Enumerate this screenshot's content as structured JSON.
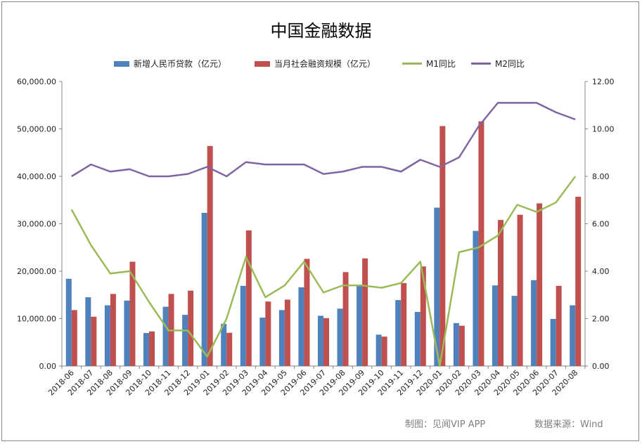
{
  "chart_data": {
    "type": "bar",
    "title": "中国金融数据",
    "categories": [
      "2018-06",
      "2018-07",
      "2018-08",
      "2018-09",
      "2018-10",
      "2018-11",
      "2018-12",
      "2019-01",
      "2019-02",
      "2019-03",
      "2019-04",
      "2019-05",
      "2019-06",
      "2019-07",
      "2019-08",
      "2019-09",
      "2019-10",
      "2019-11",
      "2019-12",
      "2020-01",
      "2020-02",
      "2020-03",
      "2020-04",
      "2020-05",
      "2020-06",
      "2020-07",
      "2020-08"
    ],
    "bar_series": [
      {
        "name": "新增人民币贷款（亿元）",
        "color": "#4f81bd",
        "values": [
          18400,
          14500,
          12800,
          13800,
          6970,
          12500,
          10800,
          32300,
          8900,
          16900,
          10200,
          11800,
          16600,
          10600,
          12100,
          16900,
          6613,
          13900,
          11400,
          33400,
          9057,
          28500,
          17000,
          14800,
          18100,
          9927,
          12800
        ]
      },
      {
        "name": "当月社会融资规模（亿元）",
        "color": "#c0504d",
        "values": [
          11800,
          10400,
          15200,
          22000,
          7300,
          15200,
          15900,
          46400,
          7000,
          28600,
          13600,
          14000,
          22600,
          10100,
          19800,
          22700,
          6200,
          17500,
          21000,
          50600,
          8500,
          51600,
          30800,
          31900,
          34300,
          16900,
          35700
        ]
      }
    ],
    "line_series": [
      {
        "name": "M1同比",
        "color": "#9bbb59",
        "values": [
          6.6,
          5.1,
          3.9,
          4.0,
          2.7,
          1.5,
          1.5,
          0.4,
          2.0,
          4.6,
          2.9,
          3.4,
          4.4,
          3.1,
          3.4,
          3.4,
          3.3,
          3.5,
          4.4,
          0.0,
          4.8,
          5.0,
          5.5,
          6.8,
          6.5,
          6.9,
          8.0
        ]
      },
      {
        "name": "M2同比",
        "color": "#8064a2",
        "values": [
          8.0,
          8.5,
          8.2,
          8.3,
          8.0,
          8.0,
          8.1,
          8.4,
          8.0,
          8.6,
          8.5,
          8.5,
          8.5,
          8.1,
          8.2,
          8.4,
          8.4,
          8.2,
          8.7,
          8.4,
          8.8,
          10.1,
          11.1,
          11.1,
          11.1,
          10.7,
          10.4
        ]
      }
    ],
    "y_left": {
      "min": 0,
      "max": 60000,
      "step": 10000,
      "ticks": [
        "0.00",
        "10,000.00",
        "20,000.00",
        "30,000.00",
        "40,000.00",
        "50,000.00",
        "60,000.00"
      ]
    },
    "y_right": {
      "min": 0,
      "max": 12,
      "step": 2,
      "ticks": [
        "0.00",
        "2.00",
        "4.00",
        "6.00",
        "8.00",
        "10.00",
        "12.00"
      ]
    },
    "legend_position": "top",
    "grid": false
  },
  "footer": {
    "credit": "制图：见闻VIP APP",
    "source": "数据来源：Wind"
  }
}
